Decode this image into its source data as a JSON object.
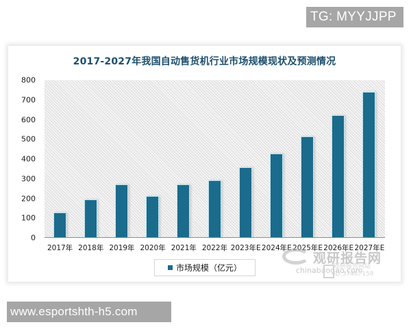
{
  "badges": {
    "top_right": "TG: MYYJJPP",
    "bottom_left": "www.esportshth-h5.com"
  },
  "watermark": {
    "name": "观研报告网",
    "domain": "chinabaogao.com",
    "sub_line1": "观研报告网站",
    "sub_line2": "ID:57467158"
  },
  "chart": {
    "title": "2017-2027年我国自动售货机行业市场规模现状及预测情况",
    "legend_label": "市场规模（亿元）",
    "y_ticks": [
      "0",
      "100",
      "200",
      "300",
      "400",
      "500",
      "600",
      "700",
      "800"
    ],
    "x_labels": [
      "2017年",
      "2018年",
      "2019年",
      "2020年",
      "2021年",
      "2022年",
      "2023年E",
      "2024年E",
      "2025年E",
      "2026年E",
      "2027年E"
    ]
  },
  "colors": {
    "bar": "#1b6b8c",
    "title": "#1d4f6e",
    "badge_bg": "#a6a6a6"
  },
  "chart_data": {
    "type": "bar",
    "title": "2017-2027年我国自动售货机行业市场规模现状及预测情况",
    "categories": [
      "2017年",
      "2018年",
      "2019年",
      "2020年",
      "2021年",
      "2022年",
      "2023年E",
      "2024年E",
      "2025年E",
      "2026年E",
      "2027年E"
    ],
    "series": [
      {
        "name": "市场规模（亿元）",
        "values": [
          127,
          190,
          267,
          210,
          267,
          289,
          355,
          425,
          512,
          620,
          737
        ]
      }
    ],
    "xlabel": "",
    "ylabel": "",
    "ylim": [
      0,
      800
    ],
    "yticks": [
      0,
      100,
      200,
      300,
      400,
      500,
      600,
      700,
      800
    ],
    "grid": false,
    "legend_position": "bottom"
  }
}
